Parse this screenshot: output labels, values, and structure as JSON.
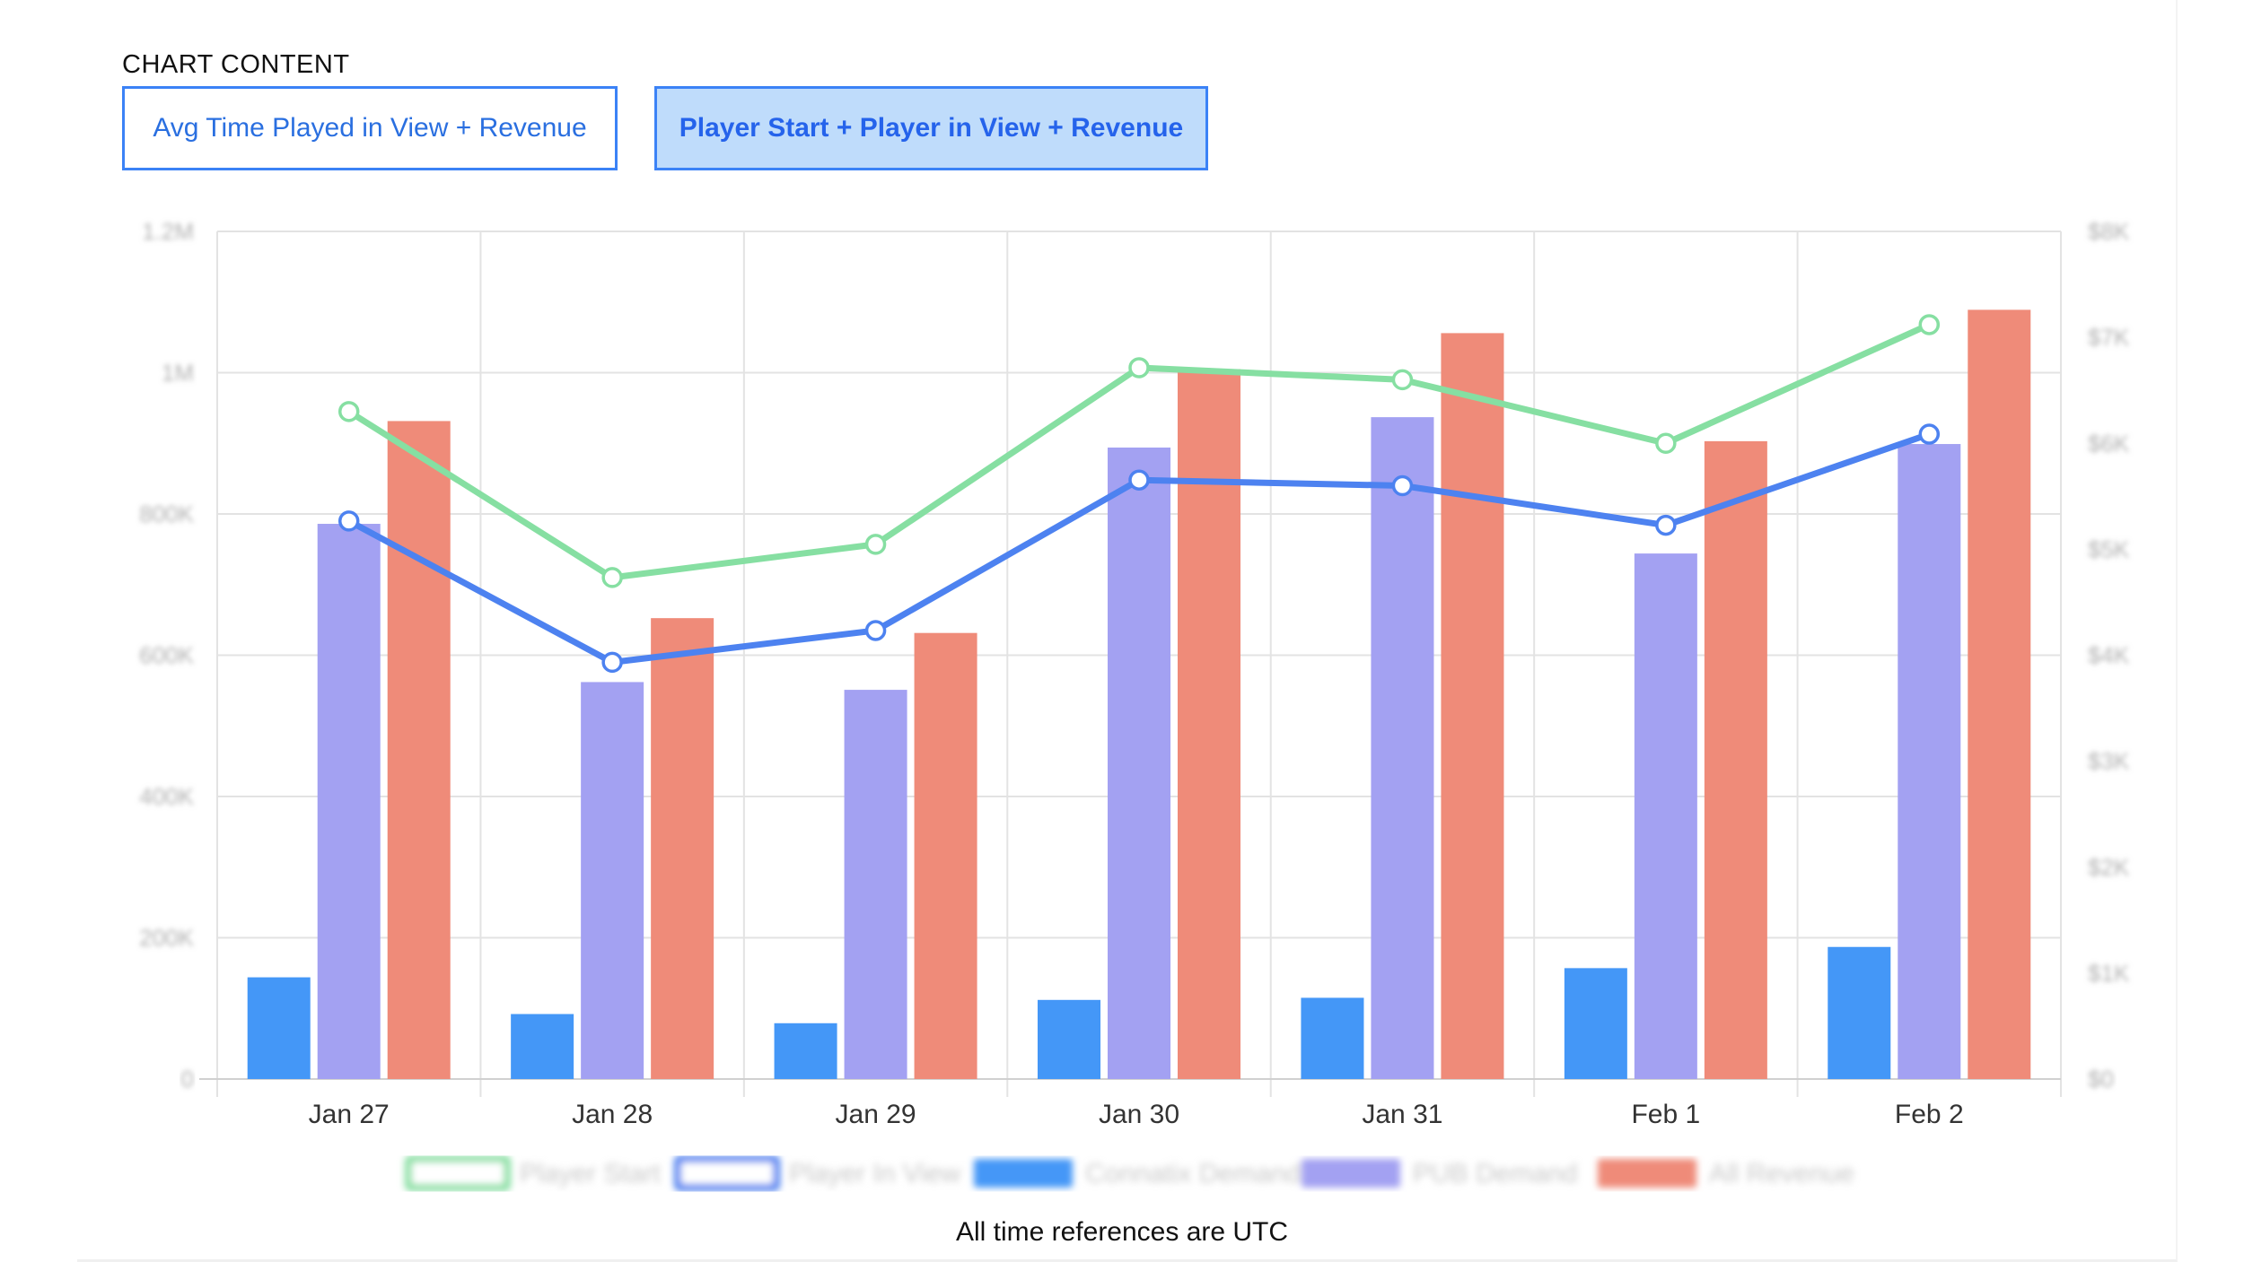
{
  "section_label": "CHART CONTENT",
  "buttons": {
    "avg_time": "Avg Time Played in View + Revenue",
    "player_start": "Player Start + Player in View + Revenue"
  },
  "footnote": "All time references are UTC",
  "colors": {
    "player_start": "#86dfa2",
    "player_in_view": "#4d82f0",
    "connatix_demand": "#4497f7",
    "pub_demand": "#a3a1f2",
    "all_revenue": "#ef8b79"
  },
  "chart_data": {
    "type": "bar",
    "categories": [
      "Jan 27",
      "Jan 28",
      "Jan 29",
      "Jan 30",
      "Jan 31",
      "Feb 1",
      "Feb 2"
    ],
    "left_axis": {
      "ticks": [
        "0",
        "200K",
        "400K",
        "600K",
        "800K",
        "1M",
        "1.2M"
      ],
      "ylim": [
        0,
        1200000
      ]
    },
    "right_axis": {
      "ticks": [
        "$0",
        "$1K",
        "$2K",
        "$3K",
        "$4K",
        "$5K",
        "$6K",
        "$7K",
        "$8K"
      ],
      "ylim": [
        0,
        8000
      ]
    },
    "grid": true,
    "legend_position": "bottom",
    "series": [
      {
        "name": "Player Start",
        "type": "line",
        "axis": "left",
        "color": "#86dfa2",
        "values": [
          945000,
          710000,
          757000,
          1007000,
          990000,
          900000,
          1068000
        ]
      },
      {
        "name": "Player In View",
        "type": "line",
        "axis": "left",
        "color": "#4d82f0",
        "values": [
          790000,
          590000,
          635000,
          848000,
          840000,
          784000,
          913000
        ]
      },
      {
        "name": "Connatix Demand",
        "type": "bar",
        "axis": "left",
        "color": "#4497f7",
        "values": [
          144000,
          92000,
          79000,
          112000,
          115000,
          157000,
          187000
        ]
      },
      {
        "name": "PUB Demand",
        "type": "bar",
        "axis": "left",
        "color": "#a3a1f2",
        "values": [
          786000,
          562000,
          551000,
          894000,
          937000,
          744000,
          899000
        ]
      },
      {
        "name": "All Revenue",
        "type": "bar",
        "axis": "right",
        "color": "#ef8b79",
        "values": [
          6210,
          4350,
          4210,
          6700,
          7040,
          6020,
          7260
        ]
      }
    ]
  }
}
